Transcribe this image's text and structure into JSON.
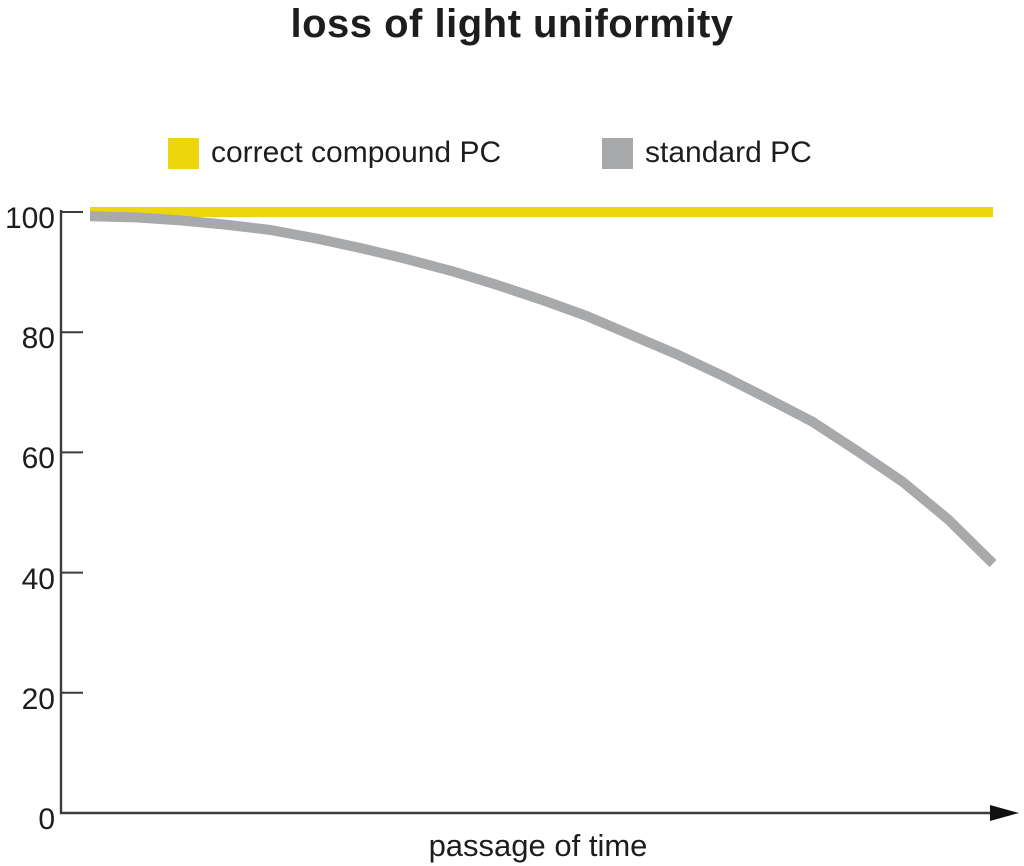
{
  "chart_data": {
    "type": "line",
    "title": "loss of light uniformity",
    "xlabel": "passage of time",
    "ylabel": "",
    "yticks": [
      0,
      20,
      40,
      60,
      80,
      100
    ],
    "ylim": [
      0,
      100
    ],
    "xlim_normalized": [
      0,
      1
    ],
    "x_tick_labels": [],
    "grid": false,
    "legend_position": "top",
    "x_axis_arrow": true,
    "series": [
      {
        "name": "correct compound PC",
        "color": "#EDD60B",
        "x": [
          0,
          1
        ],
        "values": [
          100,
          100
        ]
      },
      {
        "name": "standard PC",
        "color": "#A8A9AB",
        "x": [
          0,
          0.05,
          0.1,
          0.15,
          0.2,
          0.25,
          0.3,
          0.35,
          0.4,
          0.45,
          0.5,
          0.55,
          0.6,
          0.65,
          0.7,
          0.75,
          0.8,
          0.85,
          0.9,
          0.95,
          1
        ],
        "values": [
          99.3,
          99.1,
          98.6,
          97.9,
          97.0,
          95.6,
          94.0,
          92.2,
          90.2,
          87.9,
          85.4,
          82.7,
          79.5,
          76.3,
          72.8,
          69.0,
          65.1,
          60.2,
          55.1,
          48.9,
          41.5
        ]
      }
    ]
  },
  "colors": {
    "axis": "#3c3c3c",
    "text": "#1d1d1b",
    "background": "#ffffff"
  }
}
